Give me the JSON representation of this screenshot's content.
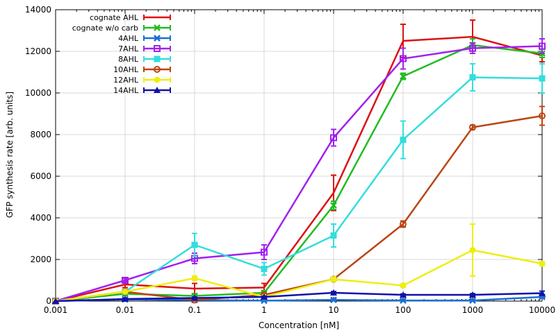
{
  "chart_data": {
    "type": "line",
    "xlabel": "Concentration [nM]",
    "ylabel": "GFP synthesis rate [arb. units]",
    "x_scale": "log",
    "x": [
      0.001,
      0.01,
      0.1,
      1,
      10,
      100,
      1000,
      10000
    ],
    "x_tick_labels": [
      "0.001",
      "0.01",
      "0.1",
      "1",
      "10",
      "100",
      "1000",
      "10000"
    ],
    "y_ticks": [
      0,
      2000,
      4000,
      6000,
      8000,
      10000,
      12000,
      14000
    ],
    "y_tick_labels": [
      "0",
      "2000",
      "4000",
      "6000",
      "8000",
      "10000",
      "12000",
      "14000"
    ],
    "xlim": [
      0.001,
      10000
    ],
    "ylim": [
      0,
      14000
    ],
    "grid": true,
    "legend_position": "top-left",
    "series": [
      {
        "name": "cognate AHL",
        "color": "#dd1111",
        "marker": "none",
        "values": [
          0,
          800,
          600,
          650,
          5200,
          12500,
          12700,
          11800
        ],
        "errors": [
          0,
          150,
          250,
          200,
          850,
          800,
          800,
          300
        ]
      },
      {
        "name": "cognate w/o carb",
        "color": "#22bb22",
        "marker": "x",
        "values": [
          0,
          350,
          250,
          400,
          4600,
          10800,
          12300,
          11900
        ],
        "errors": [
          0,
          80,
          80,
          100,
          200,
          150,
          300,
          200
        ]
      },
      {
        "name": "4AHL",
        "color": "#1a6fd6",
        "marker": "asterisk",
        "values": [
          0,
          80,
          50,
          20,
          60,
          30,
          30,
          200
        ],
        "errors": [
          0,
          30,
          30,
          20,
          30,
          20,
          30,
          50
        ]
      },
      {
        "name": "7AHL",
        "color": "#a020f0",
        "marker": "open-square",
        "values": [
          0,
          1000,
          2050,
          2350,
          7850,
          11650,
          12150,
          12250
        ],
        "errors": [
          0,
          80,
          250,
          350,
          400,
          500,
          250,
          350
        ]
      },
      {
        "name": "8AHL",
        "color": "#33dddd",
        "marker": "filled-square",
        "values": [
          0,
          450,
          2700,
          1550,
          3150,
          7750,
          10750,
          10700
        ],
        "errors": [
          0,
          80,
          550,
          300,
          550,
          900,
          650,
          700
        ]
      },
      {
        "name": "10AHL",
        "color": "#bb4411",
        "marker": "open-circle",
        "values": [
          0,
          450,
          50,
          300,
          1050,
          3700,
          8350,
          8900
        ],
        "errors": [
          0,
          60,
          30,
          50,
          80,
          150,
          100,
          450
        ]
      },
      {
        "name": "12AHL",
        "color": "#eeee11",
        "marker": "filled-circle",
        "values": [
          0,
          450,
          1100,
          200,
          1050,
          750,
          2450,
          1800
        ],
        "errors": [
          0,
          60,
          100,
          60,
          100,
          80,
          1250,
          100
        ]
      },
      {
        "name": "14AHL",
        "color": "#1111aa",
        "marker": "filled-triangle",
        "values": [
          0,
          100,
          150,
          200,
          400,
          300,
          300,
          380
        ],
        "errors": [
          0,
          30,
          40,
          40,
          60,
          40,
          60,
          100
        ]
      }
    ]
  }
}
